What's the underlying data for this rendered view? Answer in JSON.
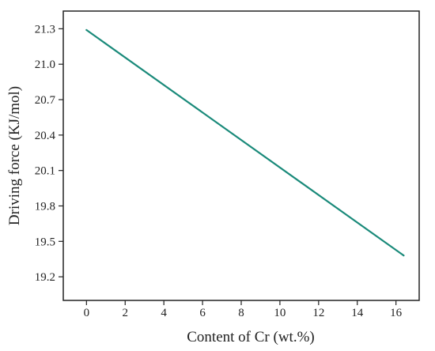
{
  "chart_data": {
    "type": "line",
    "title": "",
    "xlabel": "Content of Cr (wt.%)",
    "ylabel": "Driving force (KJ/mol)",
    "xlim": [
      -1.2,
      17.2
    ],
    "ylim": [
      19.0,
      21.45
    ],
    "xticks": [
      0,
      2,
      4,
      6,
      8,
      10,
      12,
      14,
      16
    ],
    "yticks": [
      19.2,
      19.5,
      19.8,
      20.1,
      20.4,
      20.7,
      21.0,
      21.3
    ],
    "xtick_labels": [
      "0",
      "2",
      "4",
      "6",
      "8",
      "10",
      "12",
      "14",
      "16"
    ],
    "ytick_labels": [
      "19.2",
      "19.5",
      "19.8",
      "20.1",
      "20.4",
      "20.7",
      "21.0",
      "21.3"
    ],
    "grid": false,
    "series": [
      {
        "color": "#1a8a7a",
        "x": [
          0,
          16.4
        ],
        "y": [
          21.29,
          19.38
        ]
      }
    ]
  }
}
